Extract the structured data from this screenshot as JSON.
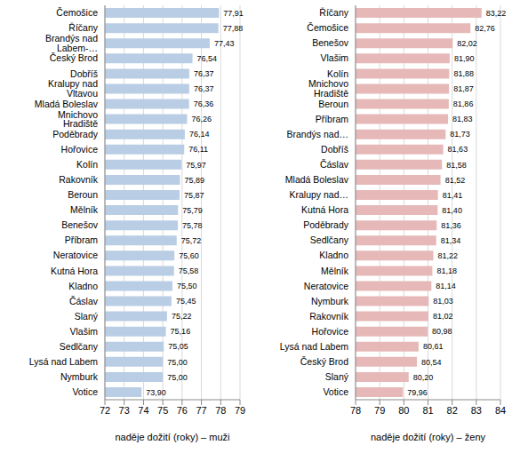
{
  "chart_data": [
    {
      "type": "bar",
      "orientation": "horizontal",
      "data_labels": true,
      "grid": true,
      "color": "#b9cde5",
      "xlabel": "naděje dožití (roky) – muži",
      "categories": [
        "Čemošice",
        "Říčany",
        "Brandýs nad Labem-…",
        "Český Brod",
        "Dobříš",
        "Kralupy nad Vltavou",
        "Mladá Boleslav",
        "Mnichovo Hradiště",
        "Poděbrady",
        "Hořovice",
        "Kolín",
        "Rakovník",
        "Beroun",
        "Mělník",
        "Benešov",
        "Příbram",
        "Neratovice",
        "Kutná Hora",
        "Kladno",
        "Čáslav",
        "Slaný",
        "Vlašim",
        "Sedlčany",
        "Lysá nad Labem",
        "Nymburk",
        "Votice"
      ],
      "values": [
        77.91,
        77.88,
        77.43,
        76.54,
        76.37,
        76.37,
        76.36,
        76.26,
        76.14,
        76.11,
        75.97,
        75.89,
        75.87,
        75.79,
        75.78,
        75.72,
        75.6,
        75.58,
        75.5,
        75.45,
        75.22,
        75.16,
        75.05,
        75.0,
        75.0,
        73.9
      ],
      "value_labels": [
        "77,91",
        "77,88",
        "77,43",
        "76,54",
        "76,37",
        "76,37",
        "76,36",
        "76,26",
        "76,14",
        "76,11",
        "75,97",
        "75,89",
        "75,87",
        "75,79",
        "75,78",
        "75,72",
        "75,60",
        "75,58",
        "75,50",
        "75,45",
        "75,22",
        "75,16",
        "75,05",
        "75,00",
        "75,00",
        "73,90"
      ],
      "xlim": [
        72,
        79
      ],
      "xticks": [
        72,
        73,
        74,
        75,
        76,
        77,
        78,
        79
      ]
    },
    {
      "type": "bar",
      "orientation": "horizontal",
      "data_labels": true,
      "grid": true,
      "color": "#e6b9b8",
      "xlabel": "naděje dožití (roky) – ženy",
      "categories": [
        "Říčany",
        "Čemošice",
        "Benešov",
        "Vlašim",
        "Kolín",
        "Mnichovo Hradiště",
        "Beroun",
        "Příbram",
        "Brandýs nad…",
        "Dobříš",
        "Čáslav",
        "Mladá Boleslav",
        "Kralupy nad…",
        "Kutná Hora",
        "Poděbrady",
        "Sedlčany",
        "Kladno",
        "Mělník",
        "Neratovice",
        "Nymburk",
        "Rakovník",
        "Hořovice",
        "Lysá nad Labem",
        "Český Brod",
        "Slaný",
        "Votice"
      ],
      "values": [
        83.22,
        82.76,
        82.02,
        81.9,
        81.88,
        81.87,
        81.86,
        81.83,
        81.73,
        81.63,
        81.58,
        81.52,
        81.41,
        81.4,
        81.36,
        81.34,
        81.22,
        81.18,
        81.14,
        81.03,
        81.02,
        80.98,
        80.61,
        80.54,
        80.2,
        79.96
      ],
      "value_labels": [
        "83,22",
        "82,76",
        "82,02",
        "81,90",
        "81,88",
        "81,87",
        "81,86",
        "81,83",
        "81,73",
        "81,63",
        "81,58",
        "81,52",
        "81,41",
        "81,40",
        "81,36",
        "81,34",
        "81,22",
        "81,18",
        "81,14",
        "81,03",
        "81,02",
        "80,98",
        "80,61",
        "80,54",
        "80,20",
        "79,96"
      ],
      "xlim": [
        78,
        84
      ],
      "xticks": [
        78,
        79,
        80,
        81,
        82,
        83,
        84
      ]
    }
  ]
}
